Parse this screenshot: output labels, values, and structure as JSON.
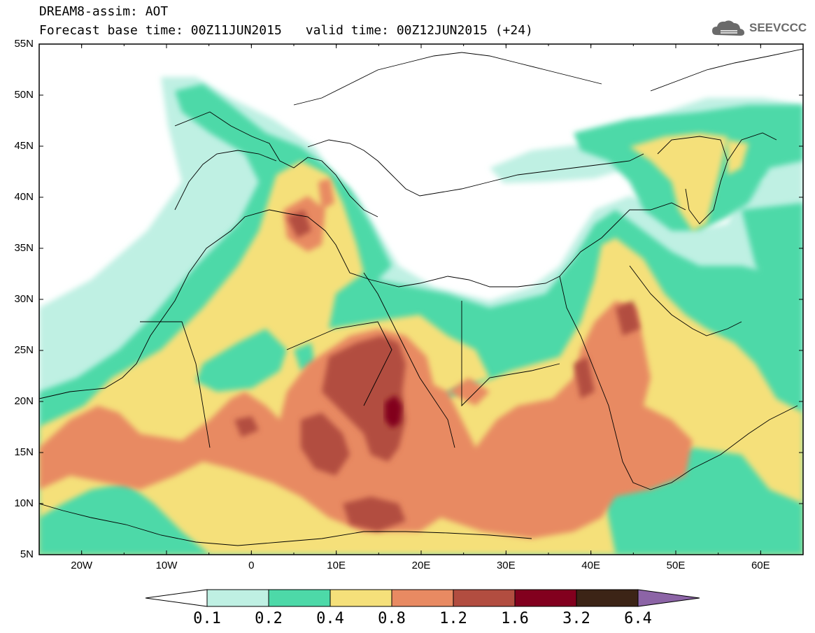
{
  "header": {
    "title": "DREAM8-assim: AOT",
    "base_time": "Forecast base time: 00Z11JUN2015",
    "valid_time": "valid time: 00Z12JUN2015 (+24)"
  },
  "logo": {
    "text": "SEEVCCC",
    "icon": "cloud-icon"
  },
  "map": {
    "lat_labels": [
      "55N",
      "50N",
      "45N",
      "40N",
      "35N",
      "30N",
      "25N",
      "20N",
      "15N",
      "10N",
      "5N"
    ],
    "lon_labels": [
      "20W",
      "10W",
      "0",
      "10E",
      "20E",
      "30E",
      "40E",
      "50E",
      "60E"
    ],
    "lat_range": [
      5,
      55
    ],
    "lon_range": [
      -25,
      65
    ]
  },
  "colorbar": {
    "levels": [
      "0.1",
      "0.2",
      "0.4",
      "0.8",
      "1.2",
      "1.6",
      "3.2",
      "6.4"
    ],
    "colors": [
      "#ffffff",
      "#bff0e3",
      "#4dd9a8",
      "#f5e07a",
      "#e88a62",
      "#b24d40",
      "#82001e",
      "#3c2416",
      "#8c64a6"
    ]
  }
}
